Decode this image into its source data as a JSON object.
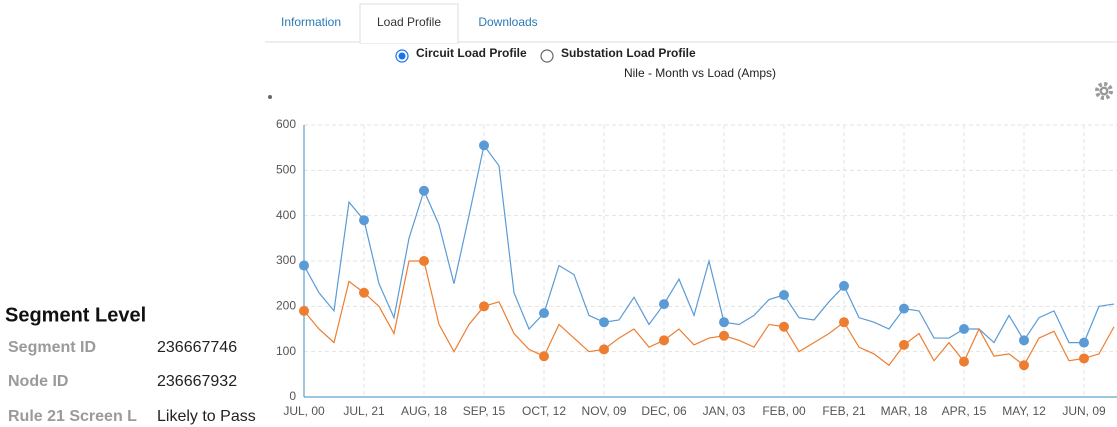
{
  "tabs": [
    "Information",
    "Load Profile",
    "Downloads"
  ],
  "radios": [
    {
      "label": "Circuit Load Profile",
      "checked": true
    },
    {
      "label": "Substation Load Profile",
      "checked": false
    }
  ],
  "segment": {
    "title": "Segment Level",
    "rows": [
      [
        "Segment ID",
        "236667746"
      ],
      [
        "Node ID",
        "236667932"
      ],
      [
        "Rule 21 Screen L",
        "Likely to Pass"
      ]
    ]
  },
  "chart_data": {
    "type": "line",
    "title": "Nile - Month vs Load (Amps)",
    "categories": [
      "JUL, 00",
      null,
      null,
      null,
      "JUL, 21",
      null,
      null,
      null,
      "AUG, 18",
      null,
      null,
      null,
      "SEP, 15",
      null,
      null,
      null,
      "OCT, 12",
      null,
      null,
      null,
      "NOV, 09",
      null,
      null,
      null,
      "DEC, 06",
      null,
      null,
      null,
      "JAN, 03",
      null,
      null,
      null,
      "FEB, 00",
      null,
      null,
      null,
      "FEB, 21",
      null,
      null,
      null,
      "MAR, 18",
      null,
      null,
      null,
      "APR, 15",
      null,
      null,
      null,
      "MAY, 12",
      null,
      null,
      null,
      "JUN, 09",
      null,
      null
    ],
    "series": [
      {
        "color": "#5b9bd5",
        "values": [
          290,
          230,
          190,
          430,
          390,
          250,
          175,
          350,
          455,
          380,
          250,
          400,
          555,
          510,
          230,
          150,
          185,
          290,
          270,
          180,
          165,
          170,
          220,
          160,
          205,
          260,
          180,
          300,
          165,
          160,
          180,
          215,
          225,
          175,
          170,
          210,
          245,
          175,
          165,
          150,
          195,
          190,
          130,
          130,
          150,
          150,
          120,
          180,
          125,
          175,
          190,
          120,
          120,
          200,
          205
        ]
      },
      {
        "color": "#ed7d31",
        "values": [
          190,
          150,
          120,
          255,
          230,
          200,
          140,
          300,
          300,
          160,
          100,
          160,
          200,
          210,
          140,
          105,
          90,
          160,
          130,
          100,
          105,
          130,
          150,
          110,
          125,
          150,
          115,
          130,
          135,
          125,
          110,
          160,
          155,
          100,
          120,
          140,
          165,
          110,
          95,
          70,
          115,
          140,
          80,
          120,
          78,
          150,
          90,
          95,
          70,
          130,
          145,
          80,
          85,
          95,
          155
        ]
      }
    ],
    "ylim": [
      0,
      600
    ],
    "yticks": [
      0,
      100,
      200,
      300,
      400,
      500,
      600
    ],
    "grid": true
  }
}
